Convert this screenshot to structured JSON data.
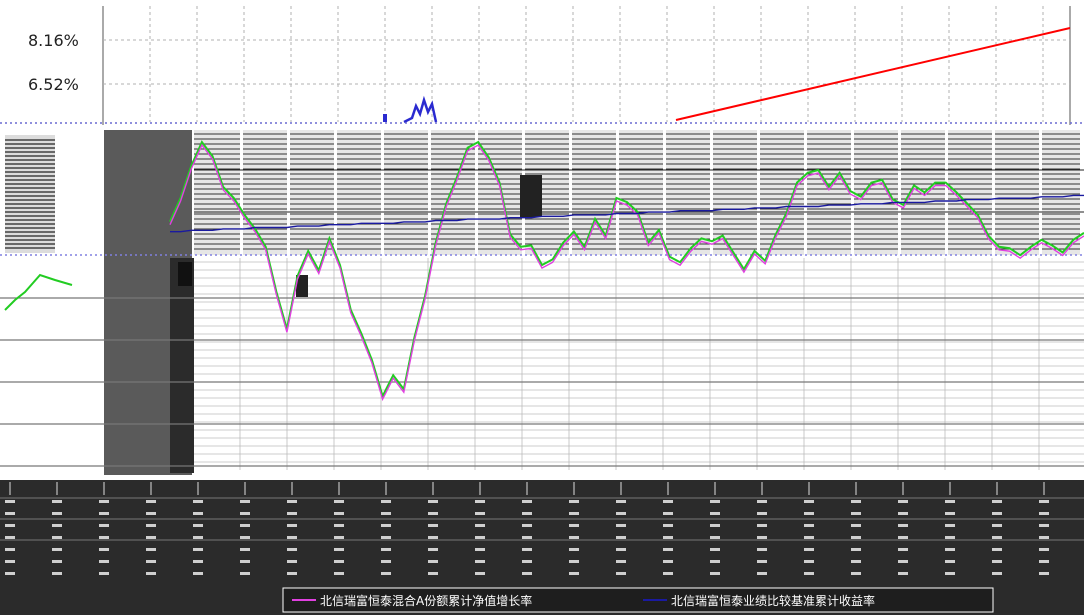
{
  "chart_data": {
    "type": "line",
    "title": "",
    "xlabel": "",
    "ylabel": "",
    "y_ticks_top": [
      "8.16%",
      "6.52%"
    ],
    "grid": true,
    "legend_position": "bottom",
    "colors": {
      "series_1": "#e040e0",
      "series_2": "#1a1aa0",
      "overlay_green": "#22cc22",
      "overlay_red": "#ff0000",
      "overlay_blue": "#2a2ad0",
      "gridline": "#b0b0b0",
      "dark_band": "#2b2b2b"
    },
    "series": [
      {
        "name": "北信瑞富恒泰混合A份额累计净值增长率",
        "color": "#e040e0",
        "values": [
          0.5,
          2.2,
          4.5,
          6.2,
          5.2,
          3.0,
          2.2,
          1.0,
          0.0,
          -1.3,
          -4.5,
          -7.2,
          -3.4,
          -1.6,
          -3.0,
          -0.7,
          -2.6,
          -5.8,
          -7.5,
          -9.4,
          -12.0,
          -10.5,
          -11.5,
          -7.8,
          -4.8,
          -1.0,
          1.8,
          3.7,
          5.8,
          6.2,
          5.1,
          3.3,
          -0.4,
          -1.3,
          -1.2,
          -2.6,
          -2.2,
          -1.0,
          -0.2,
          -1.3,
          0.7,
          -0.5,
          2.2,
          1.9,
          1.2,
          -1.0,
          -0.1,
          -2.0,
          -2.4,
          -1.4,
          -0.7,
          -0.9,
          -0.5,
          -1.7,
          -2.9,
          -1.6,
          -2.3,
          -0.4,
          1.1,
          3.3,
          4.0,
          4.2,
          3.0,
          4.0,
          2.7,
          2.3,
          3.3,
          3.5,
          2.1,
          1.7,
          3.1,
          2.6,
          3.3,
          3.3,
          2.6,
          1.8,
          1.0,
          -0.5,
          -1.3,
          -1.4,
          -1.9,
          -1.3,
          -0.8,
          -1.2,
          -1.7,
          -0.8,
          -0.3
        ]
      },
      {
        "name": "北信瑞富恒泰业绩比较基准累计收益率",
        "color": "#1a1aa0",
        "values": [
          0.0,
          0.0,
          0.1,
          0.1,
          0.1,
          0.2,
          0.2,
          0.2,
          0.3,
          0.3,
          0.3,
          0.3,
          0.4,
          0.4,
          0.4,
          0.5,
          0.5,
          0.5,
          0.6,
          0.6,
          0.6,
          0.6,
          0.7,
          0.7,
          0.7,
          0.8,
          0.8,
          0.8,
          0.9,
          0.9,
          0.9,
          0.9,
          1.0,
          1.0,
          1.0,
          1.1,
          1.1,
          1.1,
          1.2,
          1.2,
          1.2,
          1.2,
          1.3,
          1.3,
          1.3,
          1.4,
          1.4,
          1.4,
          1.5,
          1.5,
          1.5,
          1.5,
          1.6,
          1.6,
          1.6,
          1.7,
          1.7,
          1.7,
          1.8,
          1.8,
          1.8,
          1.8,
          1.9,
          1.9,
          1.9,
          2.0,
          2.0,
          2.0,
          2.1,
          2.1,
          2.1,
          2.1,
          2.2,
          2.2,
          2.2,
          2.3,
          2.3,
          2.3,
          2.4,
          2.4,
          2.4,
          2.4,
          2.5,
          2.5,
          2.5,
          2.6,
          2.6
        ]
      }
    ]
  }
}
